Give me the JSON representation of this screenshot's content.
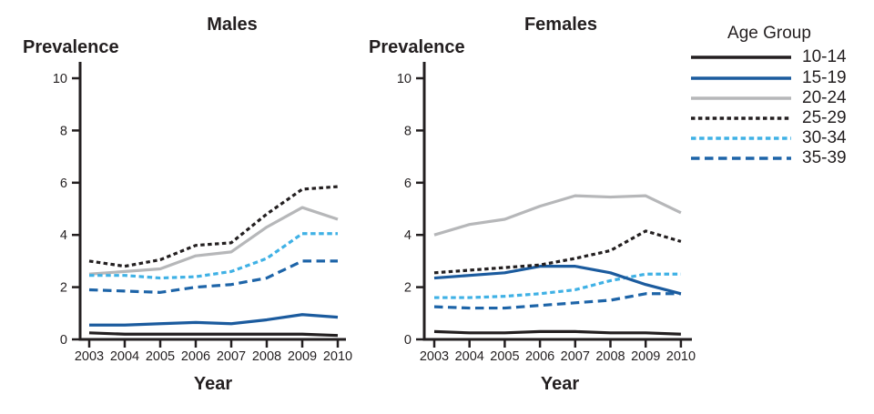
{
  "figure": {
    "background": "#ffffff",
    "text_color": "#231f20"
  },
  "legend": {
    "title": "Age Group",
    "items": [
      {
        "label": "10-14",
        "color": "#231f20",
        "dash": "solid",
        "dasharray": ""
      },
      {
        "label": "15-19",
        "color": "#1b5b9e",
        "dash": "solid",
        "dasharray": ""
      },
      {
        "label": "20-24",
        "color": "#b6b7b9",
        "dash": "solid",
        "dasharray": ""
      },
      {
        "label": "25-29",
        "color": "#231f20",
        "dash": "dotted",
        "dasharray": "4.5 3.4"
      },
      {
        "label": "30-34",
        "color": "#3fb1e5",
        "dash": "dotted",
        "dasharray": "5.5 3.6"
      },
      {
        "label": "35-39",
        "color": "#1d64a8",
        "dash": "dashed",
        "dasharray": "9.5 5.5"
      }
    ]
  },
  "chart_data": [
    {
      "type": "line",
      "title": "Males",
      "xlabel": "Year",
      "ylabel": "Prevalence",
      "x": [
        2003,
        2004,
        2005,
        2006,
        2007,
        2008,
        2009,
        2010
      ],
      "ylim": [
        0,
        10
      ],
      "yticks": [
        0,
        2,
        4,
        6,
        8,
        10
      ],
      "grid": false,
      "series": [
        {
          "name": "10-14",
          "values": [
            0.25,
            0.2,
            0.2,
            0.2,
            0.2,
            0.2,
            0.2,
            0.15
          ]
        },
        {
          "name": "15-19",
          "values": [
            0.55,
            0.55,
            0.6,
            0.65,
            0.6,
            0.75,
            0.95,
            0.85
          ]
        },
        {
          "name": "20-24",
          "values": [
            2.5,
            2.6,
            2.7,
            3.2,
            3.35,
            4.3,
            5.05,
            4.6
          ]
        },
        {
          "name": "25-29",
          "values": [
            3.0,
            2.8,
            3.05,
            3.6,
            3.7,
            4.8,
            5.75,
            5.85
          ]
        },
        {
          "name": "30-34",
          "values": [
            2.45,
            2.45,
            2.35,
            2.4,
            2.6,
            3.1,
            4.05,
            4.05
          ]
        },
        {
          "name": "35-39",
          "values": [
            1.9,
            1.85,
            1.8,
            2.0,
            2.1,
            2.35,
            3.0,
            3.0
          ]
        }
      ]
    },
    {
      "type": "line",
      "title": "Females",
      "xlabel": "Year",
      "ylabel": "Prevalence",
      "x": [
        2003,
        2004,
        2005,
        2006,
        2007,
        2008,
        2009,
        2010
      ],
      "ylim": [
        0,
        10
      ],
      "yticks": [
        0,
        2,
        4,
        6,
        8,
        10
      ],
      "grid": false,
      "series": [
        {
          "name": "10-14",
          "values": [
            0.3,
            0.25,
            0.25,
            0.3,
            0.3,
            0.25,
            0.25,
            0.2
          ]
        },
        {
          "name": "15-19",
          "values": [
            2.35,
            2.45,
            2.55,
            2.8,
            2.8,
            2.55,
            2.1,
            1.75
          ]
        },
        {
          "name": "20-24",
          "values": [
            4.0,
            4.4,
            4.6,
            5.1,
            5.5,
            5.45,
            5.5,
            4.85
          ]
        },
        {
          "name": "25-29",
          "values": [
            2.55,
            2.65,
            2.75,
            2.85,
            3.1,
            3.4,
            4.15,
            3.75
          ]
        },
        {
          "name": "30-34",
          "values": [
            1.6,
            1.6,
            1.65,
            1.75,
            1.9,
            2.25,
            2.5,
            2.5
          ]
        },
        {
          "name": "35-39",
          "values": [
            1.25,
            1.2,
            1.2,
            1.3,
            1.4,
            1.5,
            1.75,
            1.75
          ]
        }
      ]
    }
  ]
}
